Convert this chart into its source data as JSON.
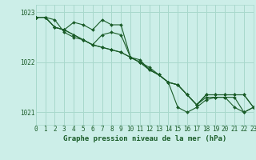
{
  "title": "Graphe pression niveau de la mer (hPa)",
  "x_labels": [
    "0",
    "1",
    "2",
    "3",
    "4",
    "5",
    "6",
    "7",
    "8",
    "9",
    "10",
    "11",
    "12",
    "13",
    "14",
    "15",
    "16",
    "17",
    "18",
    "19",
    "20",
    "21",
    "22",
    "23"
  ],
  "xlim": [
    0,
    23
  ],
  "ylim": [
    1020.75,
    1023.15
  ],
  "yticks": [
    1021,
    1022,
    1023
  ],
  "grid_color": "#a8d8cc",
  "bg_color": "#cceee8",
  "line_color": "#1a5c28",
  "series": [
    [
      1022.9,
      1022.9,
      1022.85,
      1022.6,
      1022.5,
      1022.45,
      1022.35,
      1022.3,
      1022.25,
      1022.2,
      1022.1,
      1022.0,
      1021.85,
      1021.75,
      1021.6,
      1021.1,
      1021.0,
      1021.1,
      1021.25,
      1021.3,
      1021.3,
      1021.1,
      1021.0,
      1021.1
    ],
    [
      1022.9,
      1022.9,
      1022.7,
      1022.65,
      1022.8,
      1022.75,
      1022.65,
      1022.85,
      1022.75,
      1022.75,
      1022.1,
      1022.0,
      1021.9,
      1021.75,
      1021.6,
      1021.55,
      1021.35,
      1021.15,
      1021.3,
      1021.3,
      1021.3,
      1021.3,
      1021.0,
      1021.1
    ],
    [
      1022.9,
      1022.9,
      1022.7,
      1022.65,
      1022.55,
      1022.45,
      1022.35,
      1022.55,
      1022.6,
      1022.55,
      1022.1,
      1022.05,
      1021.85,
      1021.75,
      1021.6,
      1021.55,
      1021.35,
      1021.15,
      1021.35,
      1021.35,
      1021.35,
      1021.35,
      1021.35,
      1021.1
    ],
    [
      1022.9,
      1022.9,
      1022.7,
      1022.65,
      1022.55,
      1022.45,
      1022.35,
      1022.3,
      1022.25,
      1022.2,
      1022.1,
      1022.0,
      1021.85,
      1021.75,
      1021.6,
      1021.55,
      1021.35,
      1021.15,
      1021.35,
      1021.35,
      1021.35,
      1021.35,
      1021.35,
      1021.1
    ]
  ],
  "marker": "D",
  "markersize": 2.0,
  "linewidth": 0.8,
  "title_fontsize": 6.5,
  "tick_fontsize": 5.5
}
